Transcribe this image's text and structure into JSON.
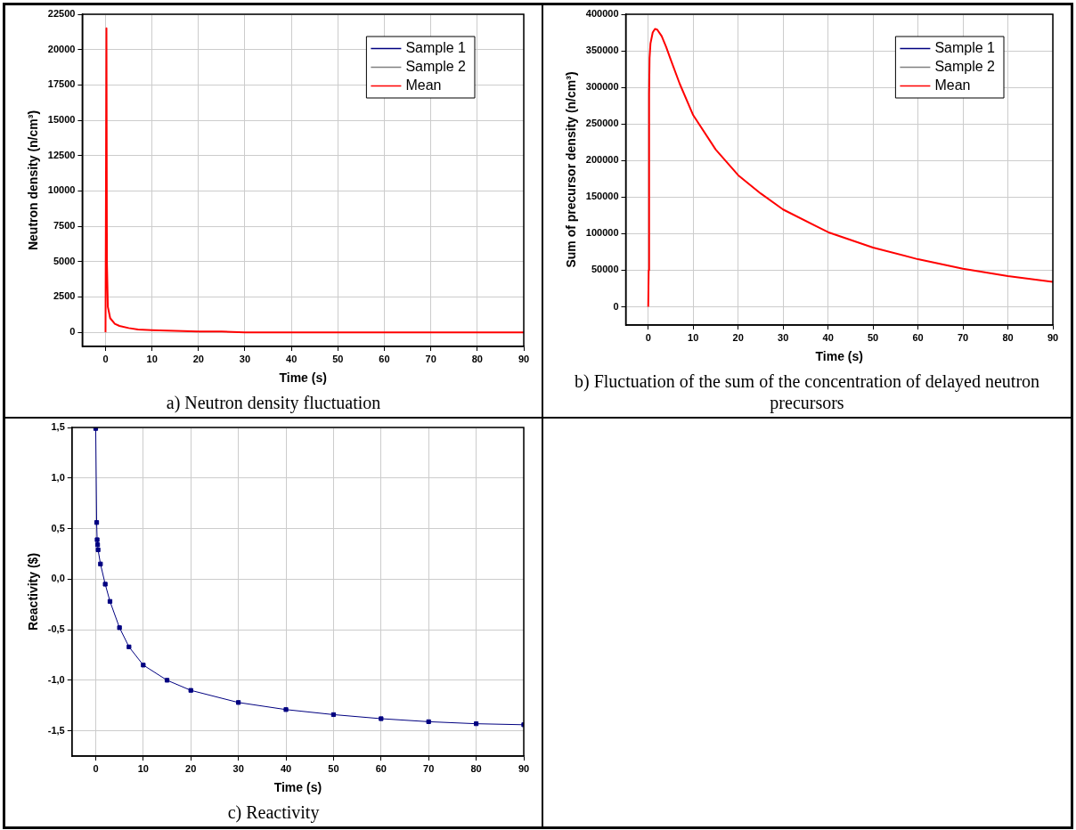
{
  "chart_data": [
    {
      "type": "line",
      "title": "a) Neutron density fluctuation",
      "xlabel": "Time (s)",
      "ylabel": "Neutron density (n/cm³)",
      "xlim": [
        -5,
        90
      ],
      "ylim": [
        -1000,
        22500
      ],
      "xticks": [
        0,
        10,
        20,
        30,
        40,
        50,
        60,
        70,
        80,
        90
      ],
      "yticks": [
        0,
        2500,
        5000,
        7500,
        10000,
        12500,
        15000,
        17500,
        20000,
        22500
      ],
      "grid": true,
      "legend": "top right",
      "x": [
        0,
        0.2,
        0.3,
        0.5,
        1,
        2,
        3,
        5,
        7,
        10,
        15,
        20,
        25,
        30,
        40,
        50,
        60,
        70,
        80,
        90
      ],
      "series": [
        {
          "name": "Sample 1",
          "color": "#000080",
          "values": [
            null,
            null,
            null,
            null,
            null,
            null,
            null,
            null,
            null,
            null,
            null,
            null,
            null,
            null,
            null,
            null,
            null,
            null,
            null,
            null
          ]
        },
        {
          "name": "Sample 2",
          "color": "#808080",
          "values": [
            null,
            null,
            null,
            null,
            null,
            null,
            null,
            null,
            null,
            null,
            null,
            null,
            null,
            null,
            null,
            null,
            null,
            null,
            null,
            null
          ]
        },
        {
          "name": "Mean",
          "color": "#ff0000",
          "values": [
            0,
            21500,
            5000,
            1800,
            1000,
            600,
            450,
            300,
            200,
            150,
            100,
            50,
            50,
            0,
            0,
            0,
            0,
            0,
            0,
            0
          ]
        }
      ]
    },
    {
      "type": "line",
      "title": "b) Fluctuation of the sum of the concentration of delayed neutron precursors",
      "xlabel": "Time (s)",
      "ylabel": "Sum of precursor density (n/cm³)",
      "xlim": [
        -5,
        90
      ],
      "ylim": [
        -25000,
        400000
      ],
      "xticks": [
        0,
        10,
        20,
        30,
        40,
        50,
        60,
        70,
        80,
        90
      ],
      "yticks": [
        0,
        50000,
        100000,
        150000,
        200000,
        250000,
        300000,
        350000,
        400000
      ],
      "grid": true,
      "legend": "top right",
      "x": [
        0,
        0.1,
        0.2,
        0.3,
        0.5,
        1,
        1.5,
        2,
        3,
        4,
        5,
        7,
        10,
        15,
        20,
        25,
        30,
        40,
        50,
        60,
        70,
        80,
        90
      ],
      "series": [
        {
          "name": "Sample 1",
          "color": "#000080",
          "values": [
            null,
            null,
            null,
            null,
            null,
            null,
            null,
            null,
            null,
            null,
            null,
            null,
            null,
            null,
            null,
            null,
            null,
            null,
            null,
            null,
            null,
            null,
            null
          ]
        },
        {
          "name": "Sample 2",
          "color": "#808080",
          "values": [
            null,
            null,
            null,
            null,
            null,
            null,
            null,
            null,
            null,
            null,
            null,
            null,
            null,
            null,
            null,
            null,
            null,
            null,
            null,
            null,
            null,
            null,
            null
          ]
        },
        {
          "name": "Mean",
          "color": "#ff0000",
          "values": [
            0,
            50000,
            290000,
            340000,
            360000,
            375000,
            380000,
            379000,
            370000,
            355000,
            338000,
            305000,
            262000,
            215000,
            180000,
            155000,
            133000,
            102000,
            81000,
            65000,
            52000,
            42000,
            34000
          ]
        }
      ]
    },
    {
      "type": "line",
      "title": "c) Reactivity",
      "xlabel": "Time (s)",
      "ylabel": "Reactivity ($)",
      "xlim": [
        -5,
        90
      ],
      "ylim": [
        -1.75,
        1.5
      ],
      "xticks": [
        0,
        10,
        20,
        30,
        40,
        50,
        60,
        70,
        80,
        90
      ],
      "yticks": [
        {
          "value": -1.5,
          "label": "-1,5"
        },
        {
          "value": -1,
          "label": "-1,0"
        },
        {
          "value": -0.5,
          "label": "-0,5"
        },
        {
          "value": 0,
          "label": "0,0"
        },
        {
          "value": 0.5,
          "label": "0,5"
        },
        {
          "value": 1,
          "label": "1,0"
        },
        {
          "value": 1.5,
          "label": "1,5"
        }
      ],
      "grid": true,
      "marker": "square",
      "x": [
        0,
        0.2,
        0.3,
        0.4,
        0.5,
        1,
        2,
        3,
        5,
        7,
        10,
        15,
        20,
        30,
        40,
        50,
        60,
        70,
        80,
        90
      ],
      "series": [
        {
          "color": "#000080",
          "values": [
            1.49,
            0.56,
            0.39,
            0.34,
            0.29,
            0.15,
            -0.05,
            -0.22,
            -0.48,
            -0.67,
            -0.85,
            -1.0,
            -1.1,
            -1.22,
            -1.29,
            -1.34,
            -1.38,
            -1.41,
            -1.43,
            -1.44
          ]
        }
      ]
    }
  ]
}
